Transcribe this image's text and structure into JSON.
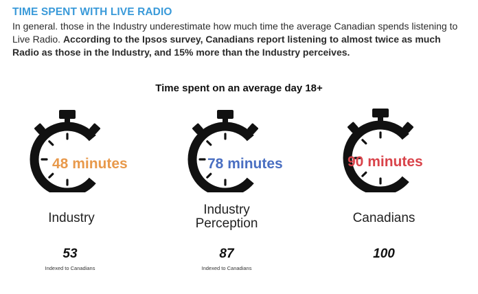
{
  "header": {
    "title": "TIME SPENT WITH LIVE RADIO",
    "intro_plain": "In general. those in the Industry underestimate how much time the average Canadian spends listening to Live Radio. ",
    "intro_bold": "According to the Ipsos survey, Canadians report listening to almost twice as much Radio as those in the Industry, and 15% more than the Industry perceives."
  },
  "chart_data": {
    "type": "table",
    "title": "Time spent on an average day 18+",
    "categories": [
      "Industry",
      "Industry Perception",
      "Canadians"
    ],
    "series": [
      {
        "values": [
          48,
          78,
          90
        ]
      },
      {
        "values": [
          53,
          87,
          100
        ]
      }
    ]
  },
  "panels": [
    {
      "minutes_text": "48 minutes",
      "label_line1": "Industry",
      "label_line2": "",
      "index_value": "53",
      "index_note": "Indexed to Canadians",
      "color": "#e8994b"
    },
    {
      "minutes_text": "78 minutes",
      "label_line1": "Industry",
      "label_line2": "Perception",
      "index_value": "87",
      "index_note": "Indexed to Canadians",
      "color": "#4a6fc2"
    },
    {
      "minutes_text": "90 minutes",
      "label_line1": "Canadians",
      "label_line2": "",
      "index_value": "100",
      "index_note": "",
      "color": "#d9434a"
    }
  ],
  "icon": "stopwatch-icon"
}
